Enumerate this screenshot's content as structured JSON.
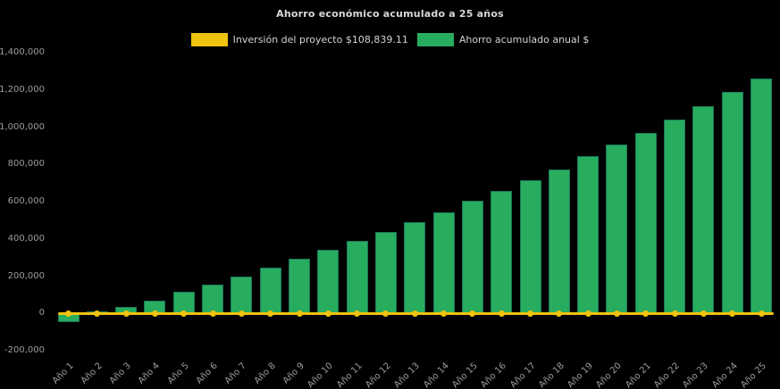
{
  "chart_data": {
    "type": "bar",
    "title": "Ahorro económico acumulado a 25 años",
    "background": "#000000",
    "legend_position": "top",
    "grid": false,
    "xlabel": "",
    "ylabel": "",
    "ylim": [
      -200000,
      1400000
    ],
    "ytick_values": [
      1400000,
      1200000,
      1000000,
      800000,
      600000,
      400000,
      200000,
      0,
      -200000
    ],
    "ytick_labels": [
      "1,400,000",
      "1,200,000",
      "1,000,000",
      "800,000",
      "600,000",
      "400,000",
      "200,000",
      "0",
      "-200,000"
    ],
    "categories": [
      "Año 1",
      "Año 2",
      "Año 3",
      "Año 4",
      "Año 5",
      "Año 6",
      "Año 7",
      "Año 8",
      "Año 9",
      "Año 10",
      "Año 11",
      "Año 12",
      "Año 13",
      "Año 14",
      "Año 15",
      "Año 16",
      "Año 17",
      "Año 18",
      "Año 19",
      "Año 20",
      "Año 21",
      "Año 22",
      "Año 23",
      "Año 24",
      "Año 25"
    ],
    "series": [
      {
        "name": "Inversión del proyecto $108,839.11",
        "type": "line",
        "color": "#F0C30F",
        "marker": "circle",
        "values": [
          0,
          0,
          0,
          0,
          0,
          0,
          0,
          0,
          0,
          0,
          0,
          0,
          0,
          0,
          0,
          0,
          0,
          0,
          0,
          0,
          0,
          0,
          0,
          0,
          0
        ]
      },
      {
        "name": "Ahorro acumulado anual $",
        "type": "bar",
        "color": "#28AC5E",
        "values": [
          -45000,
          12000,
          33000,
          69000,
          115000,
          155000,
          200000,
          246000,
          293000,
          340000,
          390000,
          440000,
          490000,
          545000,
          604000,
          657000,
          716000,
          775000,
          844000,
          908000,
          970000,
          1040000,
          1112000,
          1188000,
          1260000
        ]
      }
    ],
    "text_colors": {
      "title": "#d8d8d8",
      "legend": "#d4d4d4",
      "ticks": "#9c9c9c"
    }
  }
}
